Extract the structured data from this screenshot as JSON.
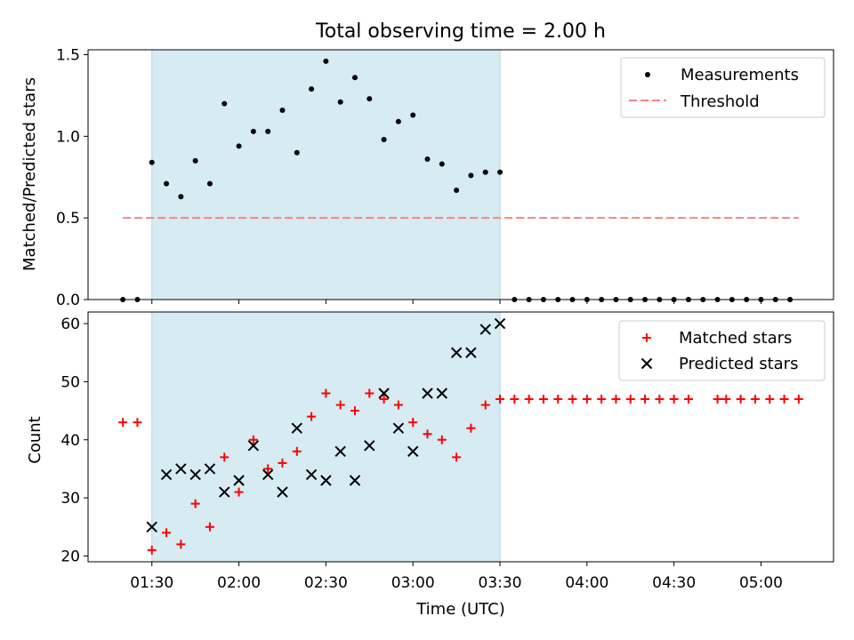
{
  "chart_data": [
    {
      "type": "scatter",
      "title": "Total observing time = 2.00 h",
      "ylabel": "Matched/Predicted stars",
      "ylim": [
        0,
        1.53
      ],
      "yticks": [
        0.0,
        0.5,
        1.0,
        1.5
      ],
      "ytick_labels": [
        "0.0",
        "0.5",
        "1.0",
        "1.5"
      ],
      "highlight_span": [
        "01:30",
        "03:30"
      ],
      "legend": {
        "placement": "top-right",
        "entries": [
          "Measurements",
          "Threshold"
        ]
      },
      "series": [
        {
          "name": "Measurements",
          "marker": "dot",
          "color": "#000000",
          "points": [
            [
              "01:20",
              0.0
            ],
            [
              "01:25",
              0.0
            ],
            [
              "01:30",
              0.84
            ],
            [
              "01:35",
              0.71
            ],
            [
              "01:40",
              0.63
            ],
            [
              "01:45",
              0.85
            ],
            [
              "01:50",
              0.71
            ],
            [
              "01:55",
              1.2
            ],
            [
              "02:00",
              0.94
            ],
            [
              "02:05",
              1.03
            ],
            [
              "02:10",
              1.03
            ],
            [
              "02:15",
              1.16
            ],
            [
              "02:20",
              0.9
            ],
            [
              "02:25",
              1.29
            ],
            [
              "02:30",
              1.46
            ],
            [
              "02:35",
              1.21
            ],
            [
              "02:40",
              1.36
            ],
            [
              "02:45",
              1.23
            ],
            [
              "02:50",
              0.98
            ],
            [
              "02:55",
              1.09
            ],
            [
              "03:00",
              1.13
            ],
            [
              "03:05",
              0.86
            ],
            [
              "03:10",
              0.83
            ],
            [
              "03:15",
              0.67
            ],
            [
              "03:20",
              0.76
            ],
            [
              "03:25",
              0.78
            ],
            [
              "03:30",
              0.78
            ],
            [
              "03:35",
              0.0
            ],
            [
              "03:40",
              0.0
            ],
            [
              "03:45",
              0.0
            ],
            [
              "03:50",
              0.0
            ],
            [
              "03:55",
              0.0
            ],
            [
              "04:00",
              0.0
            ],
            [
              "04:05",
              0.0
            ],
            [
              "04:10",
              0.0
            ],
            [
              "04:15",
              0.0
            ],
            [
              "04:20",
              0.0
            ],
            [
              "04:25",
              0.0
            ],
            [
              "04:30",
              0.0
            ],
            [
              "04:35",
              0.0
            ],
            [
              "04:40",
              0.0
            ],
            [
              "04:45",
              0.0
            ],
            [
              "04:50",
              0.0
            ],
            [
              "04:55",
              0.0
            ],
            [
              "05:00",
              0.0
            ],
            [
              "05:05",
              0.0
            ],
            [
              "05:10",
              0.0
            ]
          ]
        },
        {
          "name": "Threshold",
          "marker": "dashed-line",
          "color": "#ff7f7f",
          "points": [
            [
              "01:20",
              0.5
            ],
            [
              "05:13",
              0.5
            ]
          ]
        }
      ]
    },
    {
      "type": "scatter",
      "xlabel": "Time (UTC)",
      "ylabel": "Count",
      "ylim": [
        19,
        62
      ],
      "yticks": [
        20,
        30,
        40,
        50,
        60
      ],
      "ytick_labels": [
        "20",
        "30",
        "40",
        "50",
        "60"
      ],
      "xlim": [
        "01:08",
        "05:25"
      ],
      "xticks": [
        "01:30",
        "02:00",
        "02:30",
        "03:00",
        "03:30",
        "04:00",
        "04:30",
        "05:00"
      ],
      "highlight_span": [
        "01:30",
        "03:30"
      ],
      "legend": {
        "placement": "top-right",
        "entries": [
          "Matched stars",
          "Predicted stars"
        ]
      },
      "series": [
        {
          "name": "Matched stars",
          "marker": "plus",
          "color": "#ff0000",
          "points": [
            [
              "01:20",
              43
            ],
            [
              "01:25",
              43
            ],
            [
              "01:30",
              21
            ],
            [
              "01:35",
              24
            ],
            [
              "01:40",
              22
            ],
            [
              "01:45",
              29
            ],
            [
              "01:50",
              25
            ],
            [
              "01:55",
              37
            ],
            [
              "02:00",
              31
            ],
            [
              "02:05",
              40
            ],
            [
              "02:10",
              35
            ],
            [
              "02:15",
              36
            ],
            [
              "02:20",
              38
            ],
            [
              "02:25",
              44
            ],
            [
              "02:30",
              48
            ],
            [
              "02:35",
              46
            ],
            [
              "02:40",
              45
            ],
            [
              "02:45",
              48
            ],
            [
              "02:50",
              47
            ],
            [
              "02:55",
              46
            ],
            [
              "03:00",
              43
            ],
            [
              "03:05",
              41
            ],
            [
              "03:10",
              40
            ],
            [
              "03:15",
              37
            ],
            [
              "03:20",
              42
            ],
            [
              "03:25",
              46
            ],
            [
              "03:30",
              47
            ],
            [
              "03:35",
              47
            ],
            [
              "03:40",
              47
            ],
            [
              "03:45",
              47
            ],
            [
              "03:50",
              47
            ],
            [
              "03:55",
              47
            ],
            [
              "04:00",
              47
            ],
            [
              "04:05",
              47
            ],
            [
              "04:10",
              47
            ],
            [
              "04:15",
              47
            ],
            [
              "04:20",
              47
            ],
            [
              "04:25",
              47
            ],
            [
              "04:30",
              47
            ],
            [
              "04:35",
              47
            ],
            [
              "04:45",
              47
            ],
            [
              "04:48",
              47
            ],
            [
              "04:53",
              47
            ],
            [
              "04:58",
              47
            ],
            [
              "05:03",
              47
            ],
            [
              "05:08",
              47
            ],
            [
              "05:13",
              47
            ]
          ]
        },
        {
          "name": "Predicted stars",
          "marker": "x",
          "color": "#000000",
          "points": [
            [
              "01:30",
              25
            ],
            [
              "01:35",
              34
            ],
            [
              "01:40",
              35
            ],
            [
              "01:45",
              34
            ],
            [
              "01:50",
              35
            ],
            [
              "01:55",
              31
            ],
            [
              "02:00",
              33
            ],
            [
              "02:05",
              39
            ],
            [
              "02:10",
              34
            ],
            [
              "02:15",
              31
            ],
            [
              "02:20",
              42
            ],
            [
              "02:25",
              34
            ],
            [
              "02:30",
              33
            ],
            [
              "02:35",
              38
            ],
            [
              "02:40",
              33
            ],
            [
              "02:45",
              39
            ],
            [
              "02:50",
              48
            ],
            [
              "02:55",
              42
            ],
            [
              "03:00",
              38
            ],
            [
              "03:05",
              48
            ],
            [
              "03:10",
              48
            ],
            [
              "03:15",
              55
            ],
            [
              "03:20",
              55
            ],
            [
              "03:25",
              59
            ],
            [
              "03:30",
              60
            ]
          ]
        }
      ]
    }
  ],
  "colors": {
    "highlight_fill": "#add8e6",
    "threshold": "#ff7f7f",
    "matched": "#ff0000",
    "predicted": "#000000"
  }
}
